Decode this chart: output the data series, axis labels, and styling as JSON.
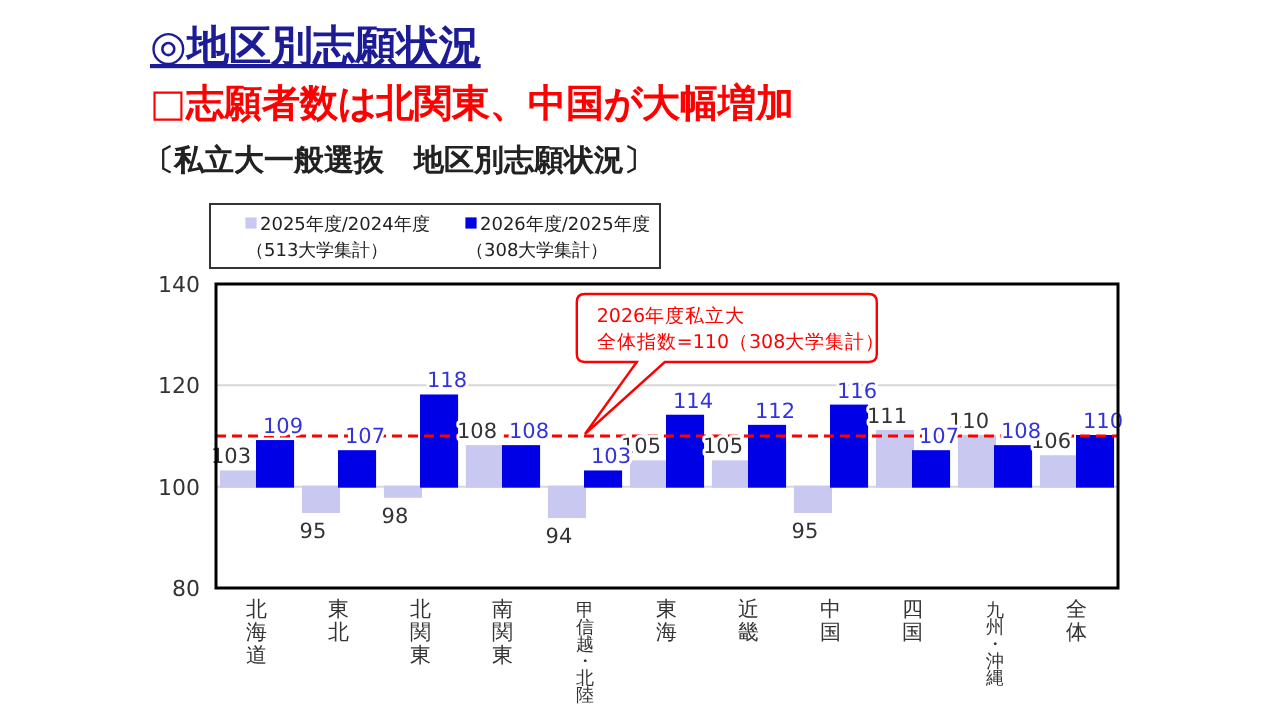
{
  "chart_data": {
    "type": "bar",
    "title": "◎地区別志願状況",
    "subtitle": "□志願者数は北関東、中国が大幅増加",
    "annotations": [
      "〔私立大一般選抜　地区別志願状況〕"
    ],
    "categories": [
      "北海道",
      "東北",
      "北関東",
      "南関東",
      "甲信越・北陸",
      "東海",
      "近畿",
      "中国",
      "四国",
      "九州・沖縄",
      "全体"
    ],
    "series": [
      {
        "name": "2025年度/2024年度（513大学集計）",
        "color": "#c8c8f0",
        "base": [
          100,
          100,
          100,
          100,
          100,
          100,
          100,
          100,
          100,
          100,
          100
        ],
        "values": [
          3,
          -5,
          -2,
          8,
          -6,
          5,
          5,
          -5,
          11,
          10,
          6
        ],
        "value_labels": [
          "103",
          "95",
          "98",
          "108",
          "94",
          "105",
          "105",
          "95",
          "111",
          "110",
          "106"
        ]
      },
      {
        "name": "2026年度/2025年度（308大学集計）",
        "color": "#0000e6",
        "base": [
          100,
          100,
          100,
          100,
          100,
          100,
          100,
          100,
          100,
          100,
          100
        ],
        "values": [
          9,
          7,
          18,
          8,
          3,
          14,
          12,
          16,
          7,
          8,
          10
        ],
        "value_labels": [
          "109",
          "107",
          "118",
          "108",
          "103",
          "114",
          "112",
          "116",
          "107",
          "108",
          "110"
        ]
      }
    ],
    "ylim": [
      80,
      140
    ],
    "yticks": [
      80,
      100,
      120,
      140
    ],
    "grid": "y",
    "legend": "top left",
    "ref_lines": [
      {
        "axis": "y",
        "value": 110,
        "label": "2026年度私立大全体指数=110（308大学集計）",
        "color": "#ff0000",
        "line_style": "dashed"
      }
    ]
  }
}
